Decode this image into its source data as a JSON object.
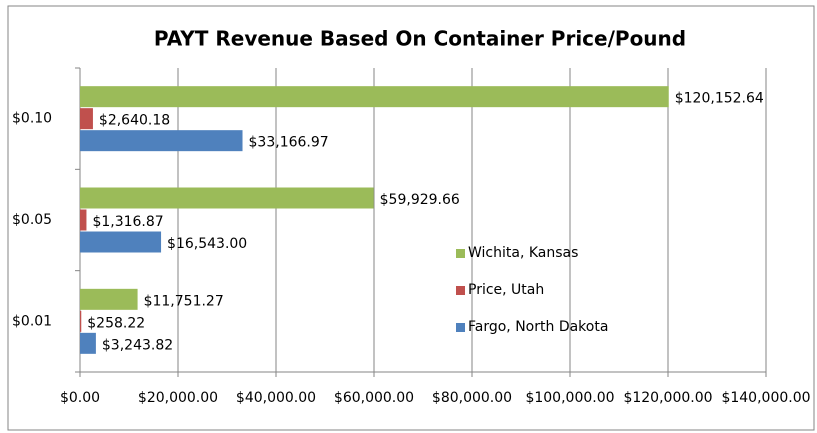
{
  "chart_data": {
    "type": "hbar",
    "title": "PAYT Revenue Based On Container Price/Pound",
    "categories": [
      "$0.01",
      "$0.05",
      "$0.10"
    ],
    "series": [
      {
        "name": "Wichita, Kansas",
        "color": "#9bbb59",
        "values": [
          11751.27,
          59929.66,
          120152.64
        ],
        "value_labels": [
          "$11,751.27",
          "$59,929.66",
          "$120,152.64"
        ]
      },
      {
        "name": "Price, Utah",
        "color": "#c0504d",
        "values": [
          258.22,
          1316.87,
          2640.18
        ],
        "value_labels": [
          "$258.22",
          "$1,316.87",
          "$2,640.18"
        ]
      },
      {
        "name": "Fargo, North Dakota",
        "color": "#4f81bd",
        "values": [
          3243.82,
          16543.0,
          33166.97
        ],
        "value_labels": [
          "$3,243.82",
          "$16,543.00",
          "$33,166.97"
        ]
      }
    ],
    "xlim": [
      0,
      140000
    ],
    "xticks": [
      {
        "value": 0,
        "label": "$0.00"
      },
      {
        "value": 20000,
        "label": "$20,000.00"
      },
      {
        "value": 40000,
        "label": "$40,000.00"
      },
      {
        "value": 60000,
        "label": "$60,000.00"
      },
      {
        "value": 80000,
        "label": "$80,000.00"
      },
      {
        "value": 100000,
        "label": "$100,000.00"
      },
      {
        "value": 120000,
        "label": "$120,000.00"
      },
      {
        "value": 140000,
        "label": "$140,000.00"
      }
    ],
    "grid": true
  }
}
